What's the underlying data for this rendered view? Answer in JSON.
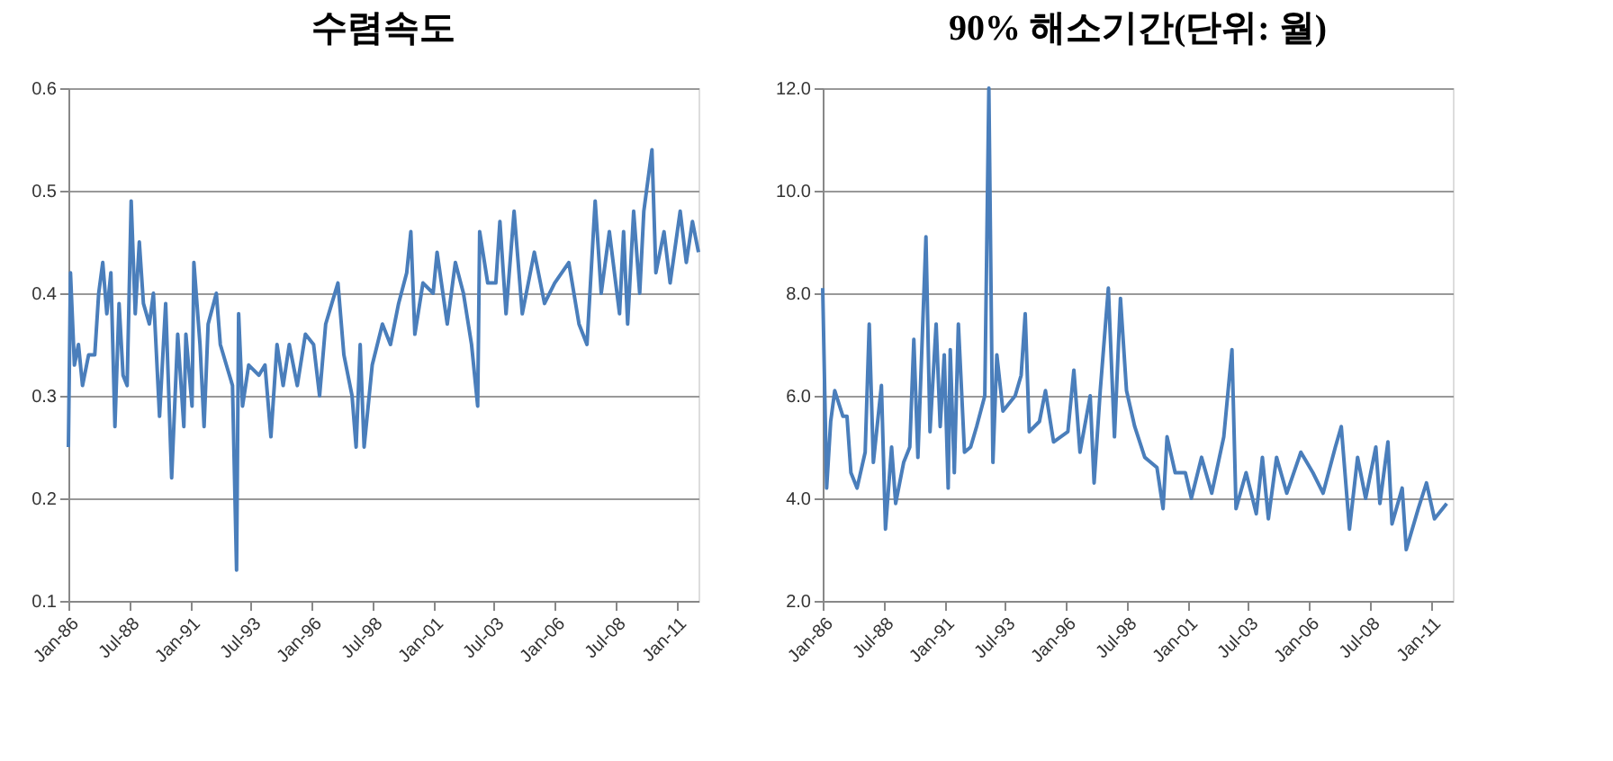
{
  "chart_data": [
    {
      "type": "line",
      "title": "수렴속도",
      "xlim": [
        "1986-01",
        "2011-12"
      ],
      "xticks": [
        {
          "value": "1986-01",
          "label": "Jan-86"
        },
        {
          "value": "1988-07",
          "label": "Jul-88"
        },
        {
          "value": "1991-01",
          "label": "Jan-91"
        },
        {
          "value": "1993-07",
          "label": "Jul-93"
        },
        {
          "value": "1996-01",
          "label": "Jan-96"
        },
        {
          "value": "1998-07",
          "label": "Jul-98"
        },
        {
          "value": "2001-01",
          "label": "Jan-01"
        },
        {
          "value": "2003-07",
          "label": "Jul-03"
        },
        {
          "value": "2006-01",
          "label": "Jan-06"
        },
        {
          "value": "2008-07",
          "label": "Jul-08"
        },
        {
          "value": "2011-01",
          "label": "Jan-11"
        }
      ],
      "ylim": [
        0.1,
        0.6
      ],
      "yticks": [
        0.1,
        0.2,
        0.3,
        0.4,
        0.5,
        0.6
      ],
      "grid": "y",
      "x": [
        "1986-01",
        "1986-02",
        "1986-04",
        "1986-06",
        "1986-08",
        "1986-11",
        "1987-02",
        "1987-04",
        "1987-06",
        "1987-08",
        "1987-10",
        "1987-12",
        "1988-02",
        "1988-04",
        "1988-06",
        "1988-08",
        "1988-10",
        "1988-12",
        "1989-02",
        "1989-05",
        "1989-07",
        "1989-10",
        "1990-01",
        "1990-04",
        "1990-07",
        "1990-10",
        "1990-11",
        "1991-02",
        "1991-03",
        "1991-06",
        "1991-08",
        "1991-10",
        "1992-02",
        "1992-04",
        "1992-07",
        "1992-10",
        "1992-12",
        "1993-01",
        "1993-03",
        "1993-06",
        "1993-11",
        "1994-02",
        "1994-05",
        "1994-08",
        "1994-11",
        "1995-02",
        "1995-06",
        "1995-10",
        "1996-02",
        "1996-05",
        "1996-08",
        "1996-11",
        "1997-02",
        "1997-05",
        "1997-09",
        "1997-11",
        "1998-01",
        "1998-03",
        "1998-07",
        "1998-12",
        "1999-04",
        "1999-08",
        "1999-12",
        "2000-02",
        "2000-04",
        "2000-08",
        "2001-01",
        "2001-03",
        "2001-08",
        "2001-12",
        "2002-04",
        "2002-08",
        "2002-11",
        "2002-12",
        "2003-04",
        "2003-08",
        "2003-10",
        "2004-01",
        "2004-05",
        "2004-09",
        "2005-03",
        "2005-08",
        "2006-01",
        "2006-08",
        "2007-01",
        "2007-05",
        "2007-09",
        "2007-12",
        "2008-04",
        "2008-09",
        "2008-11",
        "2009-01",
        "2009-04",
        "2009-07",
        "2009-09",
        "2010-01",
        "2010-03",
        "2010-07",
        "2010-10",
        "2011-03",
        "2011-06",
        "2011-09",
        "2011-12"
      ],
      "series": [
        {
          "color": "#4a7ebb",
          "values": [
            0.25,
            0.42,
            0.33,
            0.35,
            0.31,
            0.34,
            0.34,
            0.4,
            0.43,
            0.38,
            0.42,
            0.27,
            0.39,
            0.32,
            0.31,
            0.49,
            0.38,
            0.45,
            0.39,
            0.37,
            0.4,
            0.28,
            0.39,
            0.22,
            0.36,
            0.27,
            0.36,
            0.29,
            0.43,
            0.35,
            0.27,
            0.37,
            0.4,
            0.35,
            0.33,
            0.31,
            0.13,
            0.38,
            0.29,
            0.33,
            0.32,
            0.33,
            0.26,
            0.35,
            0.31,
            0.35,
            0.31,
            0.36,
            0.35,
            0.3,
            0.37,
            0.39,
            0.41,
            0.34,
            0.3,
            0.25,
            0.35,
            0.25,
            0.33,
            0.37,
            0.35,
            0.39,
            0.42,
            0.46,
            0.36,
            0.41,
            0.4,
            0.44,
            0.37,
            0.43,
            0.4,
            0.35,
            0.29,
            0.46,
            0.41,
            0.41,
            0.47,
            0.38,
            0.48,
            0.38,
            0.44,
            0.39,
            0.41,
            0.43,
            0.37,
            0.35,
            0.49,
            0.4,
            0.46,
            0.38,
            0.46,
            0.37,
            0.48,
            0.4,
            0.48,
            0.54,
            0.42,
            0.46,
            0.41,
            0.48,
            0.43,
            0.47,
            0.44
          ]
        }
      ]
    },
    {
      "type": "line",
      "title": "90% 해소기간(단위: 월)",
      "xlim": [
        "1986-01",
        "2011-12"
      ],
      "xticks": [
        {
          "value": "1986-01",
          "label": "Jan-86"
        },
        {
          "value": "1988-07",
          "label": "Jul-88"
        },
        {
          "value": "1991-01",
          "label": "Jan-91"
        },
        {
          "value": "1993-07",
          "label": "Jul-93"
        },
        {
          "value": "1996-01",
          "label": "Jan-96"
        },
        {
          "value": "1998-07",
          "label": "Jul-98"
        },
        {
          "value": "2001-01",
          "label": "Jan-01"
        },
        {
          "value": "2003-07",
          "label": "Jul-03"
        },
        {
          "value": "2006-01",
          "label": "Jan-06"
        },
        {
          "value": "2008-07",
          "label": "Jul-08"
        },
        {
          "value": "2011-01",
          "label": "Jan-11"
        }
      ],
      "ylim": [
        2,
        12
      ],
      "yticks": [
        {
          "value": 2,
          "label": "2.0"
        },
        {
          "value": 4,
          "label": "4.0"
        },
        {
          "value": 6,
          "label": "6.0"
        },
        {
          "value": 8,
          "label": "8.0"
        },
        {
          "value": 10,
          "label": "10.0"
        },
        {
          "value": 12,
          "label": "12.0"
        }
      ],
      "grid": "y",
      "x": [
        "1986-01",
        "1986-03",
        "1986-05",
        "1986-07",
        "1986-11",
        "1987-01",
        "1987-03",
        "1987-06",
        "1987-10",
        "1987-12",
        "1988-02",
        "1988-06",
        "1988-08",
        "1988-11",
        "1989-01",
        "1989-05",
        "1989-08",
        "1989-10",
        "1989-12",
        "1990-04",
        "1990-06",
        "1990-09",
        "1990-11",
        "1991-01",
        "1991-03",
        "1991-04",
        "1991-06",
        "1991-08",
        "1991-11",
        "1992-02",
        "1992-05",
        "1992-09",
        "1992-11",
        "1993-01",
        "1993-03",
        "1993-06",
        "1993-12",
        "1994-03",
        "1994-05",
        "1994-07",
        "1994-12",
        "1995-03",
        "1995-07",
        "1996-02",
        "1996-05",
        "1996-08",
        "1997-01",
        "1997-03",
        "1997-06",
        "1997-10",
        "1998-01",
        "1998-04",
        "1998-07",
        "1998-11",
        "1999-04",
        "1999-10",
        "2000-01",
        "2000-03",
        "2000-07",
        "2000-12",
        "2001-03",
        "2001-08",
        "2002-01",
        "2002-07",
        "2002-11",
        "2003-01",
        "2003-06",
        "2003-11",
        "2004-02",
        "2004-05",
        "2004-09",
        "2005-02",
        "2005-09",
        "2006-03",
        "2006-08",
        "2007-02",
        "2007-05",
        "2007-09",
        "2008-01",
        "2008-05",
        "2008-10",
        "2008-12",
        "2009-04",
        "2009-06",
        "2009-11",
        "2010-01",
        "2010-07",
        "2010-11",
        "2011-03",
        "2011-09"
      ],
      "series": [
        {
          "color": "#4a7ebb",
          "values": [
            8.1,
            4.2,
            5.5,
            6.1,
            5.6,
            5.6,
            4.5,
            4.2,
            4.9,
            7.4,
            4.7,
            6.2,
            3.4,
            5.0,
            3.9,
            4.7,
            5.0,
            7.1,
            4.8,
            9.1,
            5.3,
            7.4,
            5.4,
            6.8,
            4.2,
            6.9,
            4.5,
            7.4,
            4.9,
            5.0,
            5.4,
            6.0,
            12.0,
            4.7,
            6.8,
            5.7,
            6.0,
            6.4,
            7.6,
            5.3,
            5.5,
            6.1,
            5.1,
            5.3,
            6.5,
            4.9,
            6.0,
            4.3,
            6.1,
            8.1,
            5.2,
            7.9,
            6.1,
            5.4,
            4.8,
            4.6,
            3.8,
            5.2,
            4.5,
            4.5,
            4.0,
            4.8,
            4.1,
            5.2,
            6.9,
            3.8,
            4.5,
            3.7,
            4.8,
            3.6,
            4.8,
            4.1,
            4.9,
            4.5,
            4.1,
            5.0,
            5.4,
            3.4,
            4.8,
            4.0,
            5.0,
            3.9,
            5.1,
            3.5,
            4.2,
            3.0,
            3.8,
            4.3,
            3.6,
            3.9
          ]
        }
      ]
    }
  ]
}
